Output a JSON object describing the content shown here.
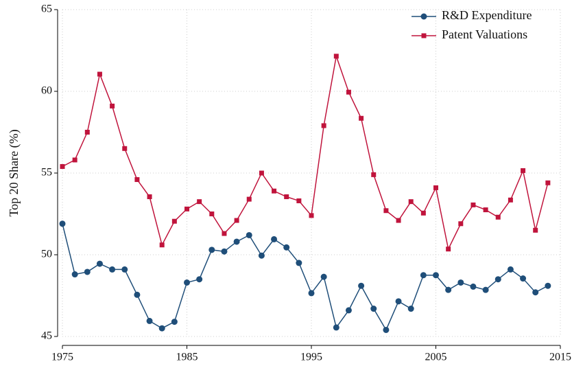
{
  "chart_data": {
    "type": "line",
    "y_label": "Top 20 Share (%)",
    "x": [
      1975,
      1976,
      1977,
      1978,
      1979,
      1980,
      1981,
      1982,
      1983,
      1984,
      1985,
      1986,
      1987,
      1988,
      1989,
      1990,
      1991,
      1992,
      1993,
      1994,
      1995,
      1996,
      1997,
      1998,
      1999,
      2000,
      2001,
      2002,
      2003,
      2004,
      2005,
      2006,
      2007,
      2008,
      2009,
      2010,
      2011,
      2012,
      2013,
      2014
    ],
    "series": [
      {
        "name": "R&D Expenditure",
        "color": "#1f4e79",
        "marker": "circle",
        "values": [
          51.9,
          48.8,
          48.95,
          49.45,
          49.1,
          49.1,
          47.55,
          45.95,
          45.5,
          45.9,
          48.3,
          48.5,
          50.3,
          50.2,
          50.8,
          51.2,
          49.95,
          50.95,
          50.45,
          49.5,
          47.65,
          48.65,
          45.55,
          46.6,
          48.1,
          46.7,
          45.4,
          47.15,
          46.7,
          48.75,
          48.75,
          47.85,
          48.3,
          48.05,
          47.85,
          48.5,
          49.1,
          48.55,
          47.7,
          48.1
        ]
      },
      {
        "name": "Patent Valuations",
        "color": "#c0143c",
        "marker": "square",
        "values": [
          55.4,
          55.8,
          57.5,
          61.05,
          59.1,
          56.5,
          54.6,
          53.55,
          50.6,
          52.05,
          52.8,
          53.25,
          52.5,
          51.3,
          52.1,
          53.4,
          55.0,
          53.9,
          53.55,
          53.3,
          52.4,
          57.9,
          62.15,
          59.95,
          58.35,
          54.9,
          52.7,
          52.1,
          53.25,
          52.55,
          54.1,
          50.35,
          51.9,
          53.05,
          52.75,
          52.3,
          53.35,
          55.15,
          51.5,
          54.4
        ]
      }
    ],
    "xlim": [
      1975,
      2015
    ],
    "xticks": [
      1975,
      1985,
      1995,
      2005,
      2015
    ],
    "ylim": [
      45,
      65
    ],
    "yticks": [
      45,
      50,
      55,
      60,
      65
    ],
    "grid": true,
    "legend": "top-right"
  }
}
